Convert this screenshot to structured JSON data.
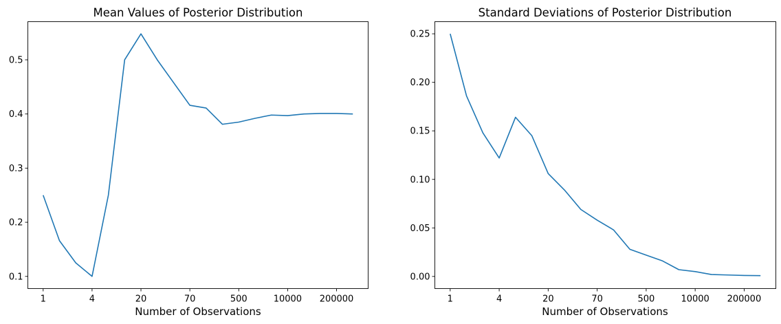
{
  "chart_data": [
    {
      "type": "line",
      "title": "Mean Values of Posterior Distribution",
      "xlabel": "Number of Observations",
      "ylabel": "",
      "xticklabels": [
        "1",
        "4",
        "20",
        "70",
        "500",
        "10000",
        "200000"
      ],
      "yticks": [
        0.1,
        0.2,
        0.3,
        0.4,
        0.5
      ],
      "yticklabels": [
        "0.1",
        "0.2",
        "0.3",
        "0.4",
        "0.5"
      ],
      "ylim": [
        0.0775,
        0.5705
      ],
      "grid": false,
      "color": "#1f77b4",
      "series": [
        {
          "values": [
            0.25,
            0.166,
            0.125,
            0.1,
            0.25,
            0.5,
            0.548,
            0.5,
            0.458,
            0.416,
            0.411,
            0.381,
            0.385,
            0.392,
            0.398,
            0.397,
            0.4,
            0.401,
            0.401,
            0.4
          ]
        }
      ]
    },
    {
      "type": "line",
      "title": "Standard Deviations of Posterior Distribution",
      "xlabel": "Number of Observations",
      "ylabel": "",
      "xticklabels": [
        "1",
        "4",
        "20",
        "70",
        "500",
        "10000",
        "200000"
      ],
      "yticks": [
        0.0,
        0.05,
        0.1,
        0.15,
        0.2,
        0.25
      ],
      "yticklabels": [
        "0.00",
        "0.05",
        "0.10",
        "0.15",
        "0.20",
        "0.25"
      ],
      "ylim": [
        -0.0125,
        0.2625
      ],
      "grid": false,
      "color": "#1f77b4",
      "series": [
        {
          "values": [
            0.25,
            0.186,
            0.148,
            0.122,
            0.164,
            0.145,
            0.106,
            0.089,
            0.069,
            0.058,
            0.048,
            0.028,
            0.022,
            0.016,
            0.007,
            0.005,
            0.002,
            0.0015,
            0.001,
            0.0008
          ]
        }
      ]
    }
  ]
}
